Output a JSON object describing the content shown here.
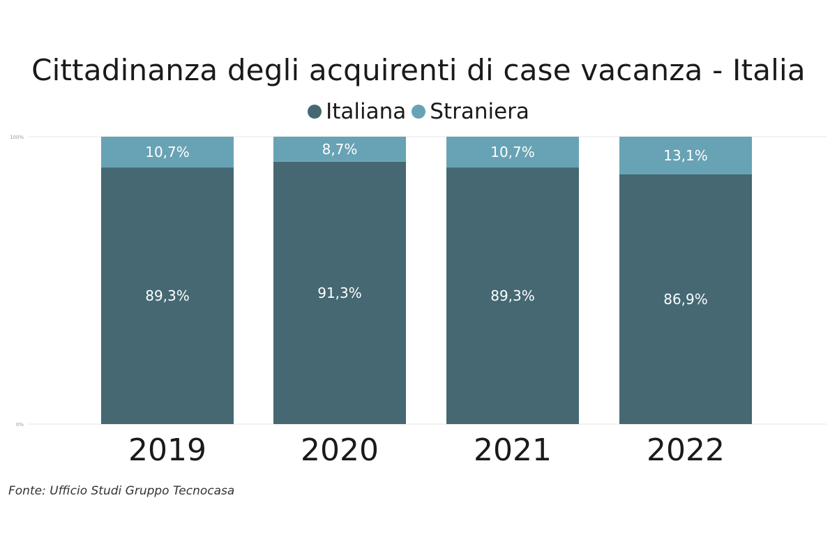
{
  "chart_data": {
    "type": "bar",
    "stacked": true,
    "title": "Cittadinanza degli acquirenti di case vacanza - Italia",
    "legend_position": "top-center",
    "categories": [
      "2019",
      "2020",
      "2021",
      "2022"
    ],
    "series": [
      {
        "name": "Italiana",
        "color": "#456873",
        "values": [
          89.3,
          91.3,
          89.3,
          86.9
        ],
        "labels": [
          "89,3%",
          "91,3%",
          "89,3%",
          "86,9%"
        ]
      },
      {
        "name": "Straniera",
        "color": "#68a2b5",
        "values": [
          10.7,
          8.7,
          10.7,
          13.1
        ],
        "labels": [
          "10,7%",
          "8,7%",
          "10,7%",
          "13,1%"
        ]
      }
    ],
    "ylim": [
      0,
      100
    ],
    "yticks": [
      {
        "value": 100,
        "label": "100%"
      },
      {
        "value": 0,
        "label": "0%"
      }
    ],
    "grid": true
  },
  "source": "Fonte: Ufficio Studi Gruppo Tecnocasa"
}
